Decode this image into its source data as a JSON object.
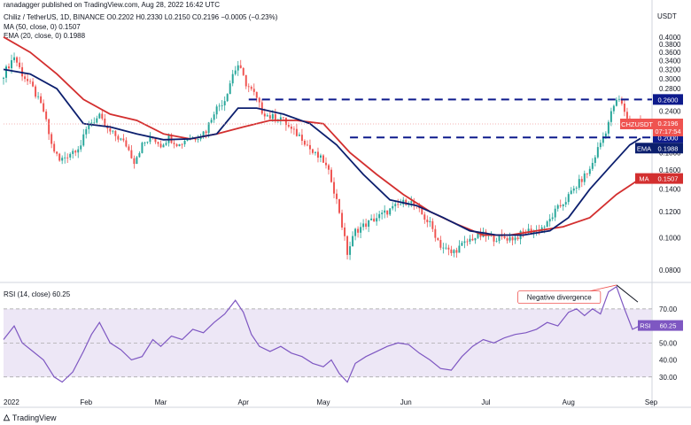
{
  "header": {
    "published": "ranadagger published on TradingView.com, Aug 28, 2022 16:42 UTC",
    "symbol_line": "Chiliz / TetherUS, 1D, BINANCE",
    "ohlc": "O0.2202  H0.2330  L0.2150  C0.2196  −0.0005 (−0.23%)",
    "ma_line": "MA (50, close, 0)  0.1507",
    "ema_line": "EMA (20, close, 0)  0.1988",
    "rsi_line": "RSI (14, close)  60.25"
  },
  "brand": {
    "name": "TradingView",
    "icon": "tradingview-logo-icon"
  },
  "colors": {
    "up": "#26a69a",
    "down": "#ef5350",
    "ema": "#0c1f6e",
    "ma": "#d32f2f",
    "level": "#0d1a8c",
    "rsi": "#7e57c2",
    "rsi_band": "#ede7f6",
    "trend": "#131722"
  },
  "chart_data": [
    {
      "type": "candlestick",
      "title": "Chiliz / TetherUS, 1D, BINANCE",
      "currency": "USDT",
      "y_scale": "log",
      "ylim": [
        0.074,
        0.43
      ],
      "y_ticks": [
        "0.4000",
        "0.3800",
        "0.3600",
        "0.3400",
        "0.3200",
        "0.3000",
        "0.2800",
        "0.2600",
        "0.2400",
        "0.2200",
        "0.2000",
        "0.1800",
        "0.1600",
        "0.1400",
        "0.1200",
        "0.1000",
        "0.0800"
      ],
      "x_ticks": [
        "2022",
        "Feb",
        "Mar",
        "Apr",
        "May",
        "Jun",
        "Jul",
        "Aug",
        "Sep"
      ],
      "x_tick_days": [
        0,
        31,
        59,
        90,
        120,
        151,
        181,
        212,
        243
      ],
      "x_range_days": [
        0,
        243
      ],
      "last_day": 239,
      "price_path": [
        [
          0,
          0.3
        ],
        [
          3,
          0.33
        ],
        [
          5,
          0.35
        ],
        [
          8,
          0.31
        ],
        [
          12,
          0.28
        ],
        [
          16,
          0.24
        ],
        [
          19,
          0.19
        ],
        [
          22,
          0.17
        ],
        [
          26,
          0.18
        ],
        [
          30,
          0.19
        ],
        [
          33,
          0.22
        ],
        [
          37,
          0.23
        ],
        [
          40,
          0.21
        ],
        [
          44,
          0.2
        ],
        [
          47,
          0.19
        ],
        [
          50,
          0.17
        ],
        [
          53,
          0.19
        ],
        [
          57,
          0.2
        ],
        [
          60,
          0.19
        ],
        [
          63,
          0.2
        ],
        [
          67,
          0.19
        ],
        [
          70,
          0.2
        ],
        [
          73,
          0.2
        ],
        [
          77,
          0.21
        ],
        [
          80,
          0.24
        ],
        [
          84,
          0.26
        ],
        [
          87,
          0.31
        ],
        [
          89,
          0.33
        ],
        [
          92,
          0.29
        ],
        [
          95,
          0.27
        ],
        [
          98,
          0.24
        ],
        [
          101,
          0.23
        ],
        [
          105,
          0.23
        ],
        [
          109,
          0.21
        ],
        [
          113,
          0.2
        ],
        [
          117,
          0.18
        ],
        [
          121,
          0.17
        ],
        [
          124,
          0.15
        ],
        [
          127,
          0.12
        ],
        [
          130,
          0.09
        ],
        [
          133,
          0.105
        ],
        [
          137,
          0.11
        ],
        [
          141,
          0.115
        ],
        [
          145,
          0.12
        ],
        [
          149,
          0.125
        ],
        [
          153,
          0.13
        ],
        [
          157,
          0.12
        ],
        [
          161,
          0.11
        ],
        [
          165,
          0.095
        ],
        [
          169,
          0.09
        ],
        [
          173,
          0.095
        ],
        [
          177,
          0.1
        ],
        [
          181,
          0.102
        ],
        [
          185,
          0.1
        ],
        [
          189,
          0.1
        ],
        [
          193,
          0.1
        ],
        [
          197,
          0.105
        ],
        [
          201,
          0.105
        ],
        [
          205,
          0.11
        ],
        [
          208,
          0.12
        ],
        [
          212,
          0.13
        ],
        [
          215,
          0.14
        ],
        [
          218,
          0.15
        ],
        [
          221,
          0.16
        ],
        [
          224,
          0.185
        ],
        [
          227,
          0.21
        ],
        [
          230,
          0.25
        ],
        [
          232,
          0.26
        ],
        [
          234,
          0.24
        ],
        [
          236,
          0.22
        ],
        [
          239,
          0.2196
        ]
      ],
      "last_ohlc": {
        "open": 0.2202,
        "high": 0.233,
        "low": 0.215,
        "close": 0.2196,
        "change": -0.0005,
        "change_pct": -0.23
      },
      "series": [
        {
          "name": "EMA (20, close, 0)",
          "last": 0.1988,
          "points": [
            [
              0,
              0.32
            ],
            [
              10,
              0.31
            ],
            [
              20,
              0.28
            ],
            [
              30,
              0.22
            ],
            [
              40,
              0.215
            ],
            [
              50,
              0.205
            ],
            [
              60,
              0.197
            ],
            [
              70,
              0.198
            ],
            [
              80,
              0.205
            ],
            [
              88,
              0.245
            ],
            [
              95,
              0.245
            ],
            [
              105,
              0.235
            ],
            [
              115,
              0.22
            ],
            [
              125,
              0.19
            ],
            [
              135,
              0.155
            ],
            [
              145,
              0.13
            ],
            [
              155,
              0.125
            ],
            [
              165,
              0.115
            ],
            [
              175,
              0.105
            ],
            [
              185,
              0.102
            ],
            [
              195,
              0.102
            ],
            [
              205,
              0.105
            ],
            [
              212,
              0.115
            ],
            [
              220,
              0.14
            ],
            [
              228,
              0.165
            ],
            [
              235,
              0.19
            ],
            [
              239,
              0.1988
            ]
          ]
        },
        {
          "name": "MA (50, close, 0)",
          "last": 0.1507,
          "points": [
            [
              0,
              0.4
            ],
            [
              10,
              0.36
            ],
            [
              20,
              0.31
            ],
            [
              30,
              0.26
            ],
            [
              40,
              0.235
            ],
            [
              50,
              0.225
            ],
            [
              60,
              0.205
            ],
            [
              70,
              0.198
            ],
            [
              80,
              0.205
            ],
            [
              90,
              0.215
            ],
            [
              100,
              0.225
            ],
            [
              110,
              0.225
            ],
            [
              120,
              0.22
            ],
            [
              130,
              0.18
            ],
            [
              140,
              0.155
            ],
            [
              150,
              0.135
            ],
            [
              160,
              0.12
            ],
            [
              170,
              0.11
            ],
            [
              180,
              0.102
            ],
            [
              190,
              0.102
            ],
            [
              200,
              0.105
            ],
            [
              210,
              0.108
            ],
            [
              220,
              0.115
            ],
            [
              230,
              0.135
            ],
            [
              239,
              0.1507
            ]
          ]
        }
      ],
      "levels": [
        {
          "label": "0.2600",
          "value": 0.26
        },
        {
          "label": "0.2000",
          "value": 0.2
        }
      ],
      "price_labels": [
        {
          "symbol": "CHZUSDT",
          "value": "0.2196",
          "countdown": "07:17:54"
        },
        {
          "name": "EMA",
          "value": "0.1988"
        },
        {
          "name": "MA",
          "value": "0.1507"
        }
      ]
    },
    {
      "type": "line",
      "title": "RSI (14, close)",
      "ylim": [
        20,
        85
      ],
      "y_ticks": [
        "70.00",
        "60.00",
        "50.00",
        "40.00",
        "30.00"
      ],
      "band": [
        30,
        70
      ],
      "series": [
        {
          "name": "RSI",
          "last": 60.25,
          "points": [
            [
              0,
              52
            ],
            [
              4,
              60
            ],
            [
              7,
              50
            ],
            [
              11,
              45
            ],
            [
              15,
              40
            ],
            [
              19,
              30
            ],
            [
              22,
              27
            ],
            [
              26,
              33
            ],
            [
              30,
              45
            ],
            [
              33,
              55
            ],
            [
              36,
              62
            ],
            [
              40,
              50
            ],
            [
              44,
              46
            ],
            [
              48,
              40
            ],
            [
              52,
              42
            ],
            [
              56,
              52
            ],
            [
              59,
              48
            ],
            [
              63,
              54
            ],
            [
              67,
              52
            ],
            [
              71,
              58
            ],
            [
              75,
              56
            ],
            [
              79,
              62
            ],
            [
              83,
              67
            ],
            [
              87,
              75
            ],
            [
              90,
              68
            ],
            [
              93,
              55
            ],
            [
              96,
              48
            ],
            [
              100,
              45
            ],
            [
              104,
              48
            ],
            [
              108,
              44
            ],
            [
              112,
              42
            ],
            [
              116,
              38
            ],
            [
              120,
              36
            ],
            [
              123,
              40
            ],
            [
              126,
              32
            ],
            [
              129,
              27
            ],
            [
              132,
              38
            ],
            [
              136,
              42
            ],
            [
              140,
              45
            ],
            [
              144,
              48
            ],
            [
              148,
              50
            ],
            [
              152,
              49
            ],
            [
              156,
              44
            ],
            [
              160,
              40
            ],
            [
              164,
              35
            ],
            [
              168,
              34
            ],
            [
              172,
              42
            ],
            [
              176,
              48
            ],
            [
              180,
              52
            ],
            [
              184,
              50
            ],
            [
              188,
              53
            ],
            [
              192,
              55
            ],
            [
              196,
              56
            ],
            [
              200,
              58
            ],
            [
              204,
              62
            ],
            [
              208,
              60
            ],
            [
              212,
              68
            ],
            [
              215,
              70
            ],
            [
              218,
              66
            ],
            [
              221,
              70
            ],
            [
              224,
              67
            ],
            [
              227,
              80
            ],
            [
              230,
              83
            ],
            [
              233,
              70
            ],
            [
              236,
              58
            ],
            [
              239,
              60.25
            ]
          ]
        }
      ],
      "annotation": "Negative divergence"
    }
  ]
}
